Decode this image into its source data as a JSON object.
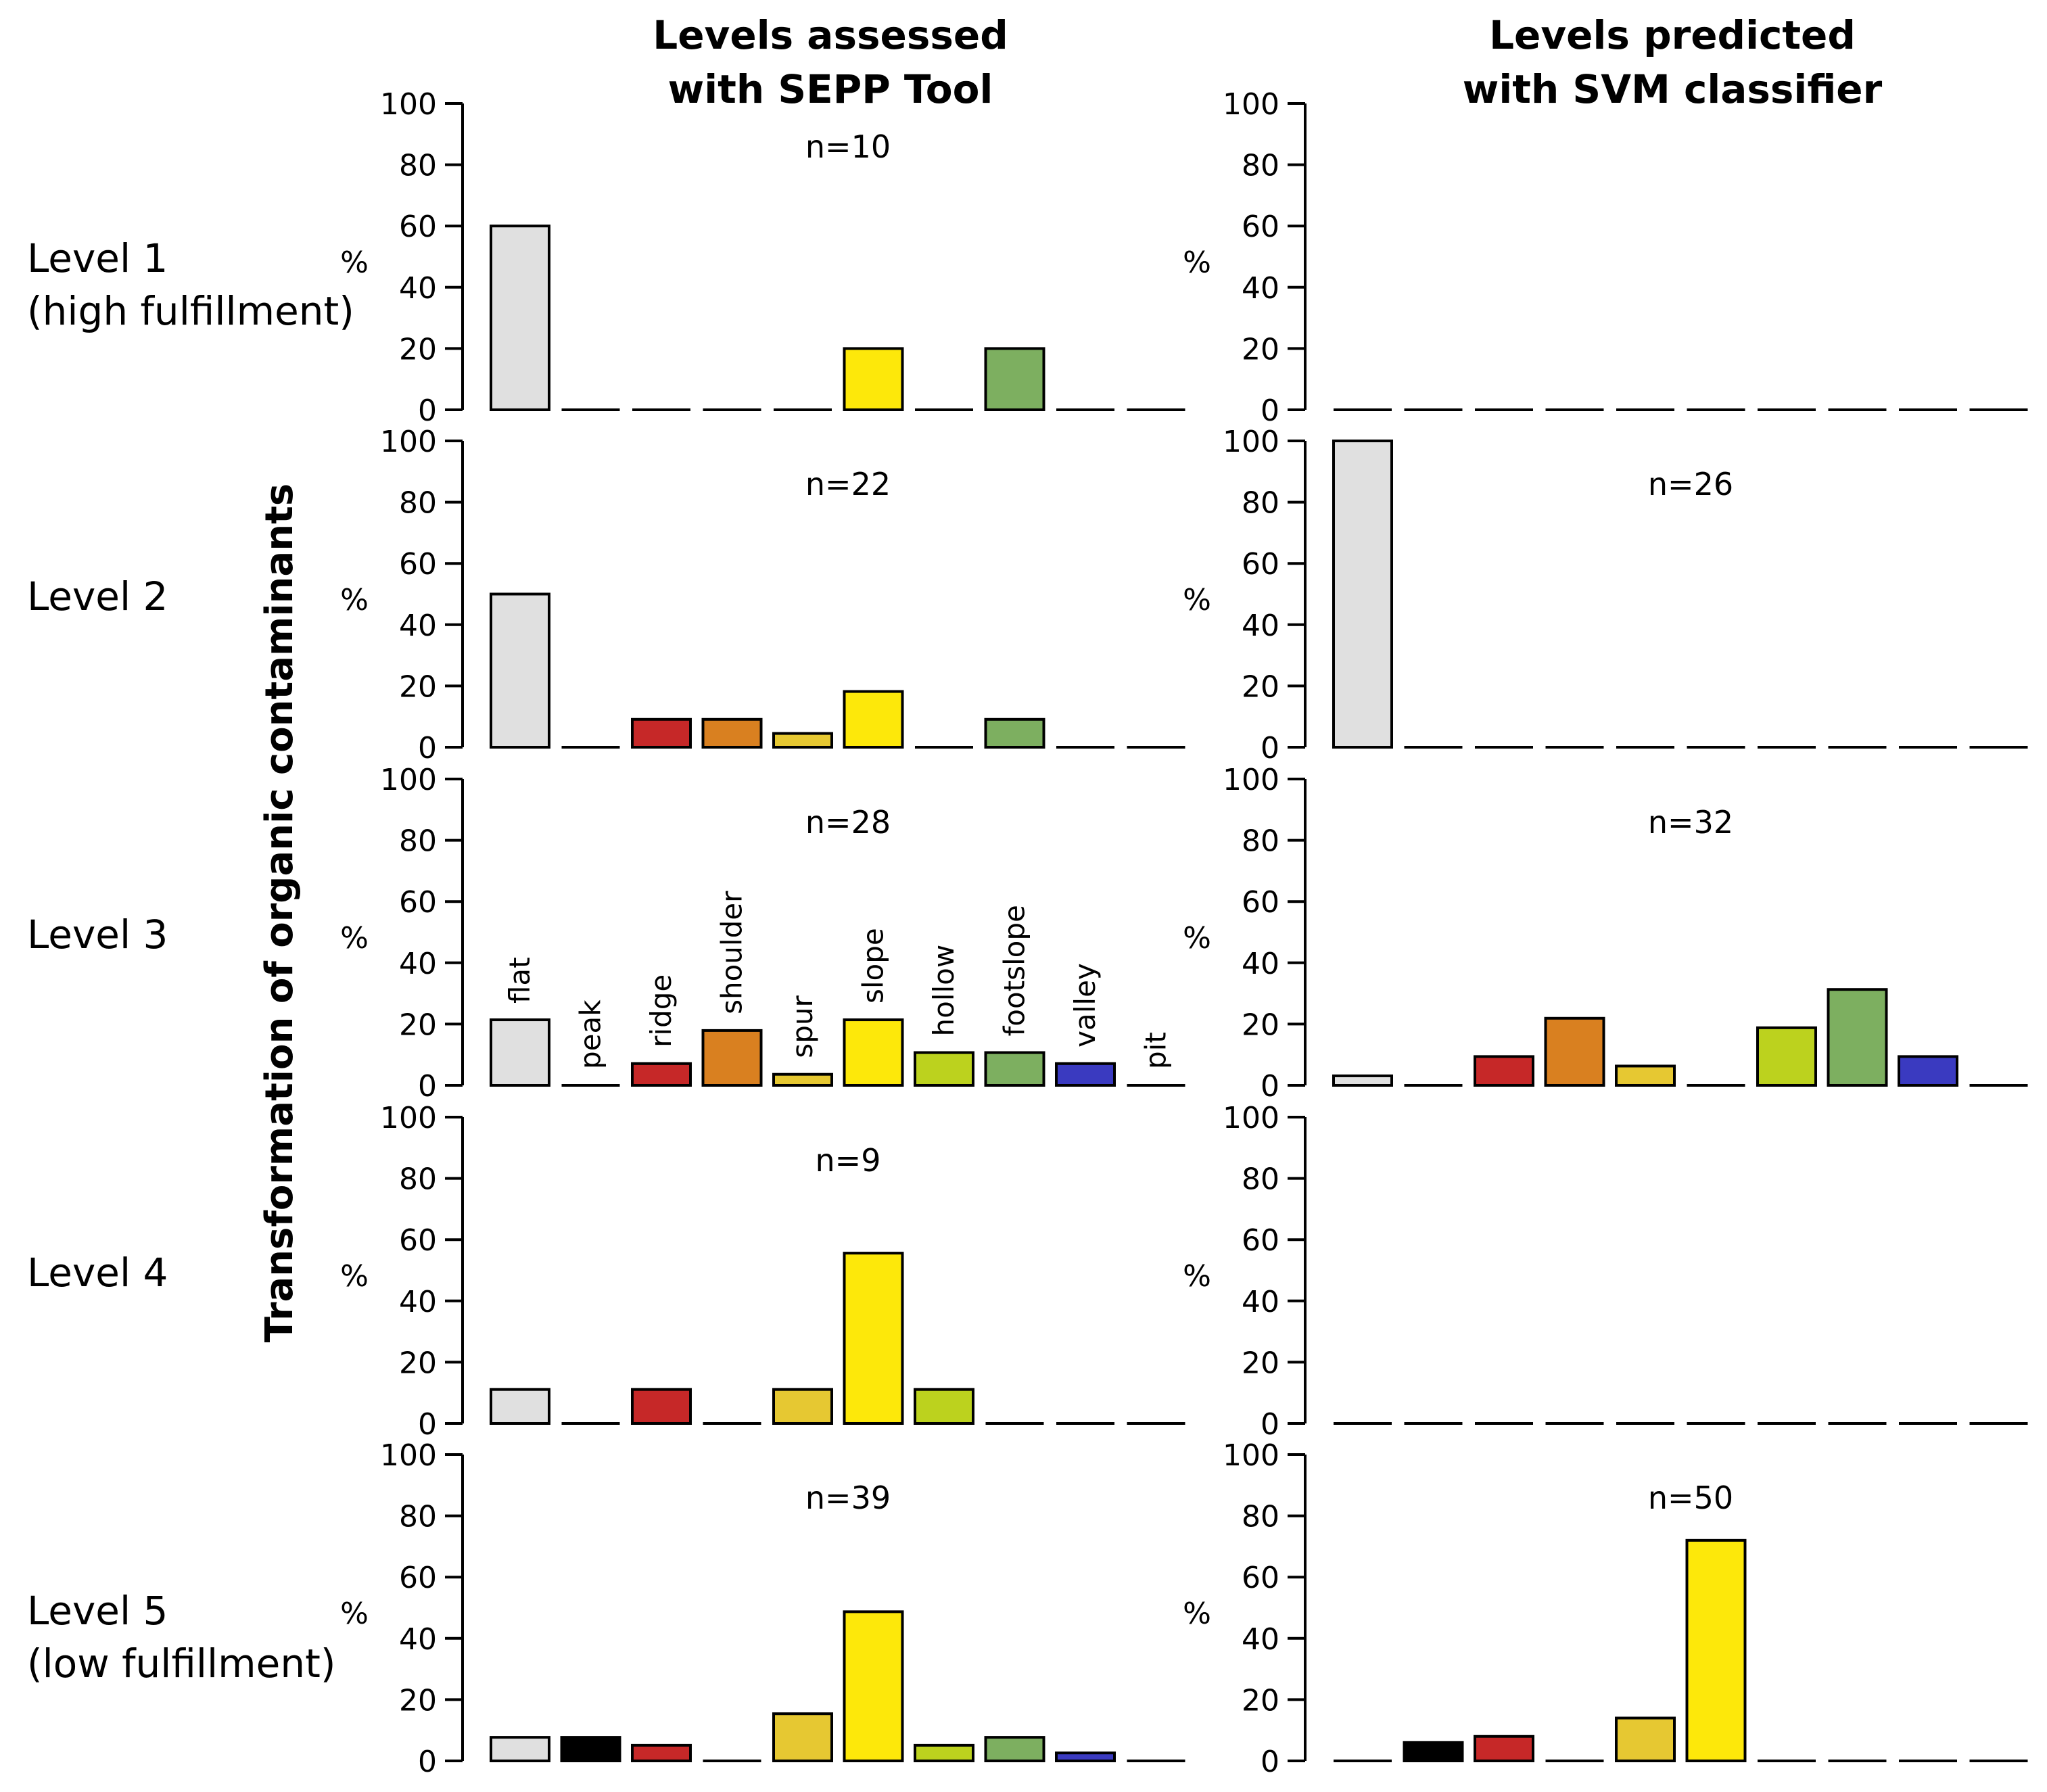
{
  "titles": {
    "left": [
      "Levels assessed",
      "with SEPP Tool"
    ],
    "right": [
      "Levels predicted",
      "with SVM classifier"
    ],
    "ylabel": "Transformation of organic contaminants"
  },
  "rows": [
    {
      "label_lines": [
        "Level 1",
        "(high fulfillment)"
      ]
    },
    {
      "label_lines": [
        "Level 2"
      ]
    },
    {
      "label_lines": [
        "Level 3"
      ]
    },
    {
      "label_lines": [
        "Level 4"
      ]
    },
    {
      "label_lines": [
        "Level 5",
        "(low fulfillment)"
      ]
    }
  ],
  "chart_data": {
    "type": "bar",
    "categories": [
      "flat",
      "peak",
      "ridge",
      "shoulder",
      "spur",
      "slope",
      "hollow",
      "footslope",
      "valley",
      "pit"
    ],
    "category_colors": [
      "#e0e0e0",
      "#000000",
      "#c62828",
      "#d98020",
      "#e6c832",
      "#fde80a",
      "#bcd21e",
      "#7daf60",
      "#3a3ac0",
      "#ffffff"
    ],
    "ylabel": "%",
    "ylim": [
      0,
      100
    ],
    "yticks": [
      0,
      20,
      40,
      60,
      80,
      100
    ],
    "yticks_text": [
      "0",
      "20",
      "40",
      "60",
      "80",
      "100"
    ],
    "category_labels_shown_in": "Level 3, Levels assessed with SEPP Tool",
    "panels": [
      {
        "row": "Level 1",
        "column": "Levels assessed with SEPP Tool",
        "n_label": "n=10",
        "values": [
          60,
          0,
          0,
          0,
          0,
          20,
          0,
          20,
          0,
          0
        ]
      },
      {
        "row": "Level 1",
        "column": "Levels predicted with SVM classifier",
        "n_label": "",
        "values": [
          0,
          0,
          0,
          0,
          0,
          0,
          0,
          0,
          0,
          0
        ]
      },
      {
        "row": "Level 2",
        "column": "Levels assessed with SEPP Tool",
        "n_label": "n=22",
        "values": [
          50,
          0,
          9.1,
          9.1,
          4.5,
          18.2,
          0,
          9.1,
          0,
          0
        ]
      },
      {
        "row": "Level 2",
        "column": "Levels predicted with SVM classifier",
        "n_label": "n=26",
        "values": [
          100,
          0,
          0,
          0,
          0,
          0,
          0,
          0,
          0,
          0
        ]
      },
      {
        "row": "Level 3",
        "column": "Levels assessed with SEPP Tool",
        "n_label": "n=28",
        "values": [
          21.4,
          0,
          7.1,
          17.9,
          3.6,
          21.4,
          10.7,
          10.7,
          7.1,
          0
        ]
      },
      {
        "row": "Level 3",
        "column": "Levels predicted with SVM classifier",
        "n_label": "n=32",
        "values": [
          3.1,
          0,
          9.4,
          21.9,
          6.3,
          0,
          18.8,
          31.3,
          9.4,
          0
        ]
      },
      {
        "row": "Level 4",
        "column": "Levels assessed with SEPP Tool",
        "n_label": "n=9",
        "values": [
          11.1,
          0,
          11.1,
          0,
          11.1,
          55.6,
          11.1,
          0,
          0,
          0
        ]
      },
      {
        "row": "Level 4",
        "column": "Levels predicted with SVM classifier",
        "n_label": "",
        "values": [
          0,
          0,
          0,
          0,
          0,
          0,
          0,
          0,
          0,
          0
        ]
      },
      {
        "row": "Level 5",
        "column": "Levels assessed with SEPP Tool",
        "n_label": "n=39",
        "values": [
          7.7,
          7.7,
          5.1,
          0,
          15.4,
          48.7,
          5.1,
          7.7,
          2.6,
          0
        ]
      },
      {
        "row": "Level 5",
        "column": "Levels predicted with SVM classifier",
        "n_label": "n=50",
        "values": [
          0,
          6,
          8,
          0,
          14,
          72,
          0,
          0,
          0,
          0
        ]
      }
    ]
  }
}
